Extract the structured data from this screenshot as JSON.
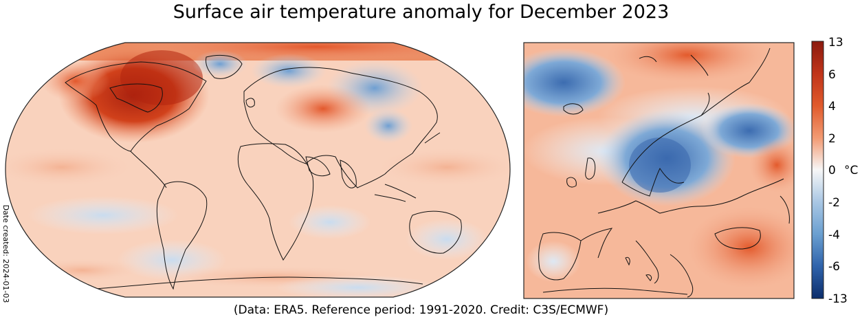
{
  "title": "Surface air temperature anomaly for December 2023",
  "credit": "(Data: ERA5.  Reference period: 1991-2020.  Credit: C3S/ECMWF)",
  "date_created": "Date created: 2024-01-03",
  "colorbar": {
    "unit": "°C",
    "ticks": [
      "13",
      "6",
      "4",
      "2",
      "0",
      "-2",
      "-4",
      "-6",
      "-13"
    ],
    "levels": [
      13,
      6,
      4,
      2,
      0,
      -2,
      -4,
      -6,
      -13
    ],
    "colors": {
      "max": "#8b1a0e",
      "warm_strong": "#d9481c",
      "warm_mid": "#f08a5c",
      "warm_light": "#fac9ac",
      "neutral": "#f7f7f7",
      "cool_light": "#c6dbef",
      "cool_mid": "#6a9fd0",
      "cool_strong": "#2f63ab",
      "min": "#0b2d6b"
    }
  },
  "panels": [
    {
      "name": "Global map"
    },
    {
      "name": "Europe map"
    }
  ]
}
